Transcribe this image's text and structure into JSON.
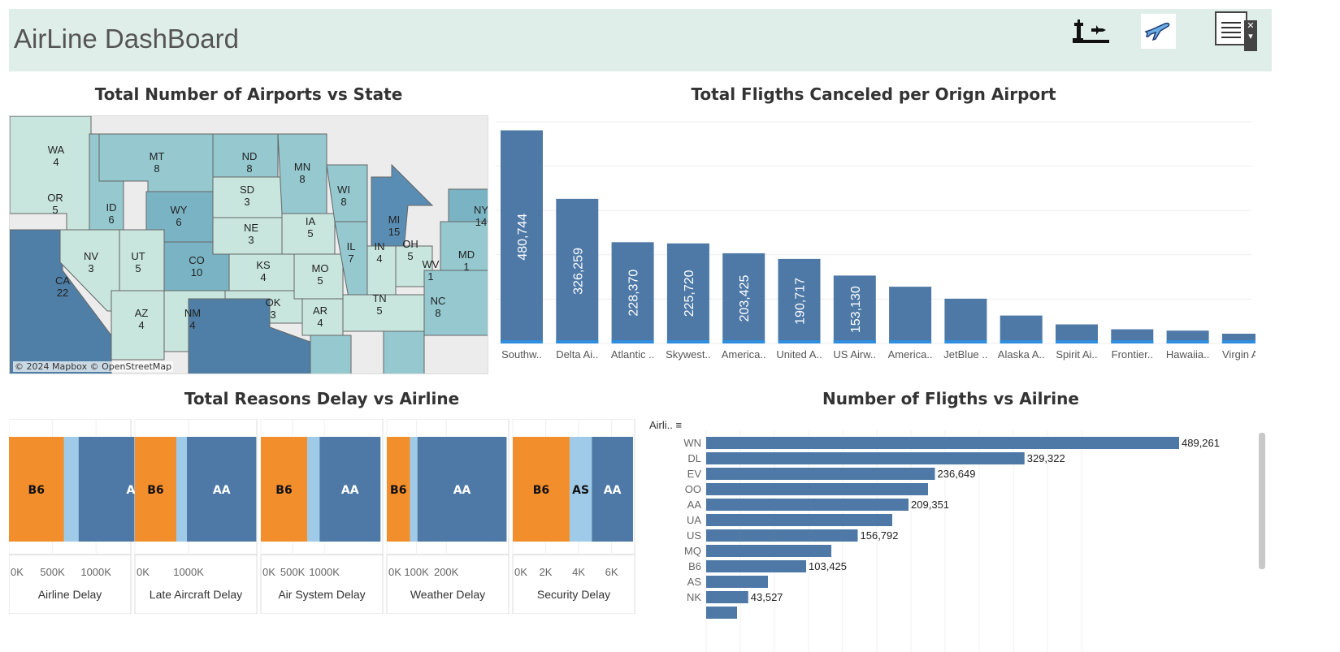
{
  "header": {
    "title": "AirLine DashBoard",
    "icons": [
      "airport-tower-icon",
      "airplane-icon",
      "menu-list-icon"
    ]
  },
  "map": {
    "title": "Total Number of Airports vs State",
    "attribution": "© 2024 Mapbox © OpenStreetMap",
    "states": [
      {
        "code": "WA",
        "value": "4"
      },
      {
        "code": "OR",
        "value": "5"
      },
      {
        "code": "CA",
        "value": "22"
      },
      {
        "code": "ID",
        "value": "6"
      },
      {
        "code": "NV",
        "value": "3"
      },
      {
        "code": "MT",
        "value": "8"
      },
      {
        "code": "WY",
        "value": "6"
      },
      {
        "code": "UT",
        "value": "5"
      },
      {
        "code": "AZ",
        "value": "4"
      },
      {
        "code": "CO",
        "value": "10"
      },
      {
        "code": "NM",
        "value": "4"
      },
      {
        "code": "ND",
        "value": "8"
      },
      {
        "code": "SD",
        "value": "3"
      },
      {
        "code": "NE",
        "value": "3"
      },
      {
        "code": "KS",
        "value": "4"
      },
      {
        "code": "OK",
        "value": "3"
      },
      {
        "code": "MN",
        "value": "8"
      },
      {
        "code": "IA",
        "value": "5"
      },
      {
        "code": "MO",
        "value": "5"
      },
      {
        "code": "AR",
        "value": "4"
      },
      {
        "code": "WI",
        "value": "8"
      },
      {
        "code": "IL",
        "value": "7"
      },
      {
        "code": "MI",
        "value": "15"
      },
      {
        "code": "IN",
        "value": "4"
      },
      {
        "code": "OH",
        "value": "5"
      },
      {
        "code": "WV",
        "value": "1"
      },
      {
        "code": "TN",
        "value": "5"
      },
      {
        "code": "NC",
        "value": "8"
      },
      {
        "code": "MD",
        "value": "1"
      },
      {
        "code": "NY",
        "value": "14"
      }
    ]
  },
  "canceled": {
    "title": "Total Fligths Canceled per Orign Airport",
    "color": "#4e79a7",
    "chart_data": {
      "type": "bar",
      "categories": [
        "Southw..",
        "Delta Ai..",
        "Atlantic ..",
        "Skywest..",
        "America..",
        "United A..",
        "US Airw..",
        "America..",
        "JetBlue ..",
        "Alaska A..",
        "Spirit Ai..",
        "Frontier..",
        "Hawaiia..",
        "Virgin A.."
      ],
      "values": [
        480744,
        326259,
        228370,
        225720,
        203425,
        190717,
        153130,
        128000,
        101000,
        63000,
        43000,
        32000,
        29000,
        22000
      ],
      "labels": [
        "480,744",
        "326,259",
        "228,370",
        "225,720",
        "203,425",
        "190,717",
        "153,130",
        "",
        "",
        "",
        "",
        "",
        "",
        ""
      ],
      "ylim": [
        0,
        500000
      ],
      "grid": true
    }
  },
  "delay": {
    "title": "Total Reasons Delay  vs Airline",
    "chart_data": [
      {
        "type": "bar",
        "xlabel": "Airline Delay",
        "ticks": [
          "0K",
          "500K",
          "1000K"
        ],
        "tickvals": [
          0,
          500000,
          1000000
        ],
        "xmax": 1400000,
        "segments": [
          {
            "name": "B6",
            "value": 630000,
            "color": "#f28e2b"
          },
          {
            "name": "",
            "value": 170000,
            "color": "#a0cbe8"
          },
          {
            "name": "AA",
            "value": 1300000,
            "color": "#4e79a7"
          }
        ]
      },
      {
        "type": "bar",
        "xlabel": "Late Aircraft Delay",
        "ticks": [
          "0K",
          "1000K"
        ],
        "tickvals": [
          0,
          1000000
        ],
        "xmax": 2270000,
        "segments": [
          {
            "name": "B6",
            "value": 770000,
            "color": "#f28e2b"
          },
          {
            "name": "",
            "value": 200000,
            "color": "#a0cbe8"
          },
          {
            "name": "AA",
            "value": 1290000,
            "color": "#4e79a7"
          }
        ]
      },
      {
        "type": "bar",
        "xlabel": "Air System Delay",
        "ticks": [
          "0K",
          "500K",
          "1000K"
        ],
        "tickvals": [
          0,
          500000,
          1000000
        ],
        "xmax": 1920000,
        "segments": [
          {
            "name": "B6",
            "value": 730000,
            "color": "#f28e2b"
          },
          {
            "name": "",
            "value": 195000,
            "color": "#a0cbe8"
          },
          {
            "name": "AA",
            "value": 960000,
            "color": "#4e79a7"
          }
        ]
      },
      {
        "type": "bar",
        "xlabel": "Weather Delay",
        "ticks": [
          "0K",
          "100K",
          "200K"
        ],
        "tickvals": [
          0,
          100000,
          200000
        ],
        "xmax": 410000,
        "segments": [
          {
            "name": "B6",
            "value": 78000,
            "color": "#f28e2b"
          },
          {
            "name": "",
            "value": 25000,
            "color": "#a0cbe8"
          },
          {
            "name": "AA",
            "value": 300000,
            "color": "#4e79a7"
          }
        ]
      },
      {
        "type": "bar",
        "xlabel": "Security Delay",
        "ticks": [
          "0K",
          "2K",
          "4K",
          "6K"
        ],
        "tickvals": [
          0,
          2000,
          4000,
          6000
        ],
        "xmax": 7400,
        "segments": [
          {
            "name": "B6",
            "value": 3450,
            "color": "#f28e2b"
          },
          {
            "name": "AS",
            "value": 1350,
            "color": "#a0cbe8"
          },
          {
            "name": "AA",
            "value": 2500,
            "color": "#4e79a7"
          }
        ]
      }
    ]
  },
  "flights": {
    "title": "Number of Fligths vs Ailrine",
    "axis_header": "Airli..",
    "chart_data": {
      "type": "bar",
      "orientation": "horizontal",
      "categories": [
        "WN",
        "DL",
        "EV",
        "OO",
        "AA",
        "UA",
        "US",
        "MQ",
        "B6",
        "AS",
        "NK"
      ],
      "values": [
        489261,
        329322,
        236649,
        229500,
        209351,
        192500,
        156792,
        129500,
        103425,
        63900,
        43527
      ],
      "labels": [
        "489,261",
        "329,322",
        "236,649",
        "",
        "209,351",
        "",
        "156,792",
        "",
        "103,425",
        "",
        "43,527"
      ],
      "xlim": [
        0,
        500000
      ]
    }
  }
}
